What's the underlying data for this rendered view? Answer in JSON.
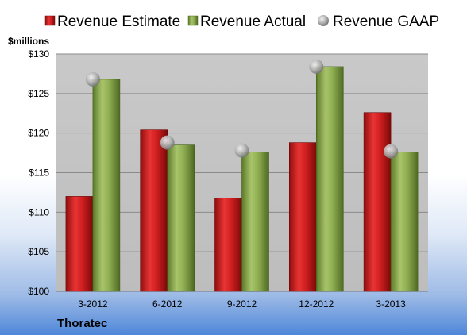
{
  "chart_data": {
    "type": "bar",
    "categories": [
      "3-2012",
      "6-2012",
      "9-2012",
      "12-2012",
      "3-2013"
    ],
    "series": [
      {
        "name": "Revenue Estimate",
        "type": "bar",
        "color": "#cc1c1c",
        "values": [
          112.0,
          120.4,
          111.8,
          118.8,
          122.6
        ]
      },
      {
        "name": "Revenue Actual",
        "type": "bar",
        "color": "#86a54a",
        "values": [
          126.8,
          118.5,
          117.6,
          128.4,
          117.6
        ]
      },
      {
        "name": "Revenue GAAP",
        "type": "scatter",
        "color": "#a6a6a6",
        "values": [
          126.8,
          118.8,
          117.8,
          128.4,
          117.7
        ]
      }
    ],
    "y_unit": "$millions",
    "y_ticks": [
      "$100",
      "$105",
      "$110",
      "$115",
      "$120",
      "$125",
      "$130"
    ],
    "ylim": [
      100,
      130
    ],
    "grid": true,
    "legend": "top"
  },
  "company": "Thoratec"
}
